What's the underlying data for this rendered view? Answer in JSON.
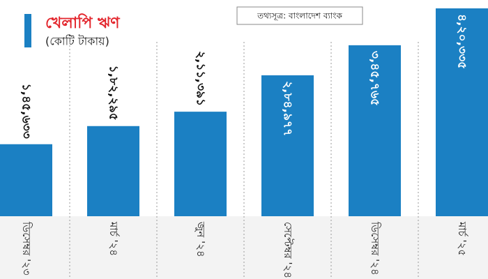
{
  "chart_data": {
    "type": "bar",
    "title": "খেলাপি ঋণ",
    "subtitle": "(কোটি টাকায়)",
    "source": "তথ্যসূত্র: বাংলাদেশ ব্যাংক",
    "categories": [
      "ডিসেম্বর '২৩",
      "মার্চ '২৪",
      "জুন '২৪",
      "সেপ্টেম্বর '২৪",
      "ডিসেম্বর '২৪",
      "মার্চ '২৫"
    ],
    "values": [
      145633,
      182295,
      211391,
      284977,
      345765,
      420335
    ],
    "value_labels": [
      "১,৪৫,৬৩৩",
      "১,৮২,২৯৫",
      "২,১১,৩৯১",
      "২,৮৪,৯৭৭",
      "৩,৪৫,৭৬৫",
      "৪,২০,৩৩৫"
    ],
    "color": "#1b80c3"
  }
}
